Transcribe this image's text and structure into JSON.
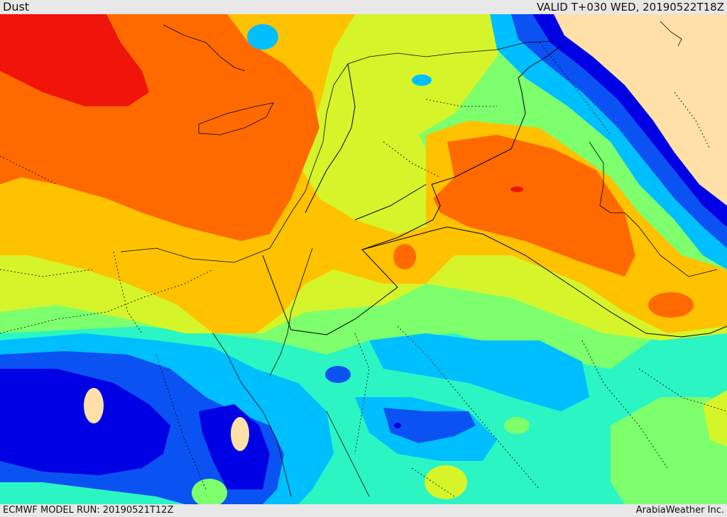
{
  "header": {
    "title": "Dust",
    "valid_time": "VALID T+030 WED, 20190522T18Z"
  },
  "footer": {
    "model_run": "ECMWF MODEL RUN: 20190521T12Z",
    "credit": "ArabiaWeather Inc."
  },
  "map": {
    "field": "dust concentration",
    "palette": {
      "very_high": "#f0140a",
      "high": "#ff6a00",
      "med_high": "#ffc200",
      "medium": "#d5f52a",
      "med_low": "#7dff6e",
      "low": "#2bf5c2",
      "lower": "#00bfff",
      "very_low": "#0a52f2",
      "minimal": "#0000e4",
      "none": "#ffe0a8"
    },
    "boundary_color": "#000000"
  }
}
